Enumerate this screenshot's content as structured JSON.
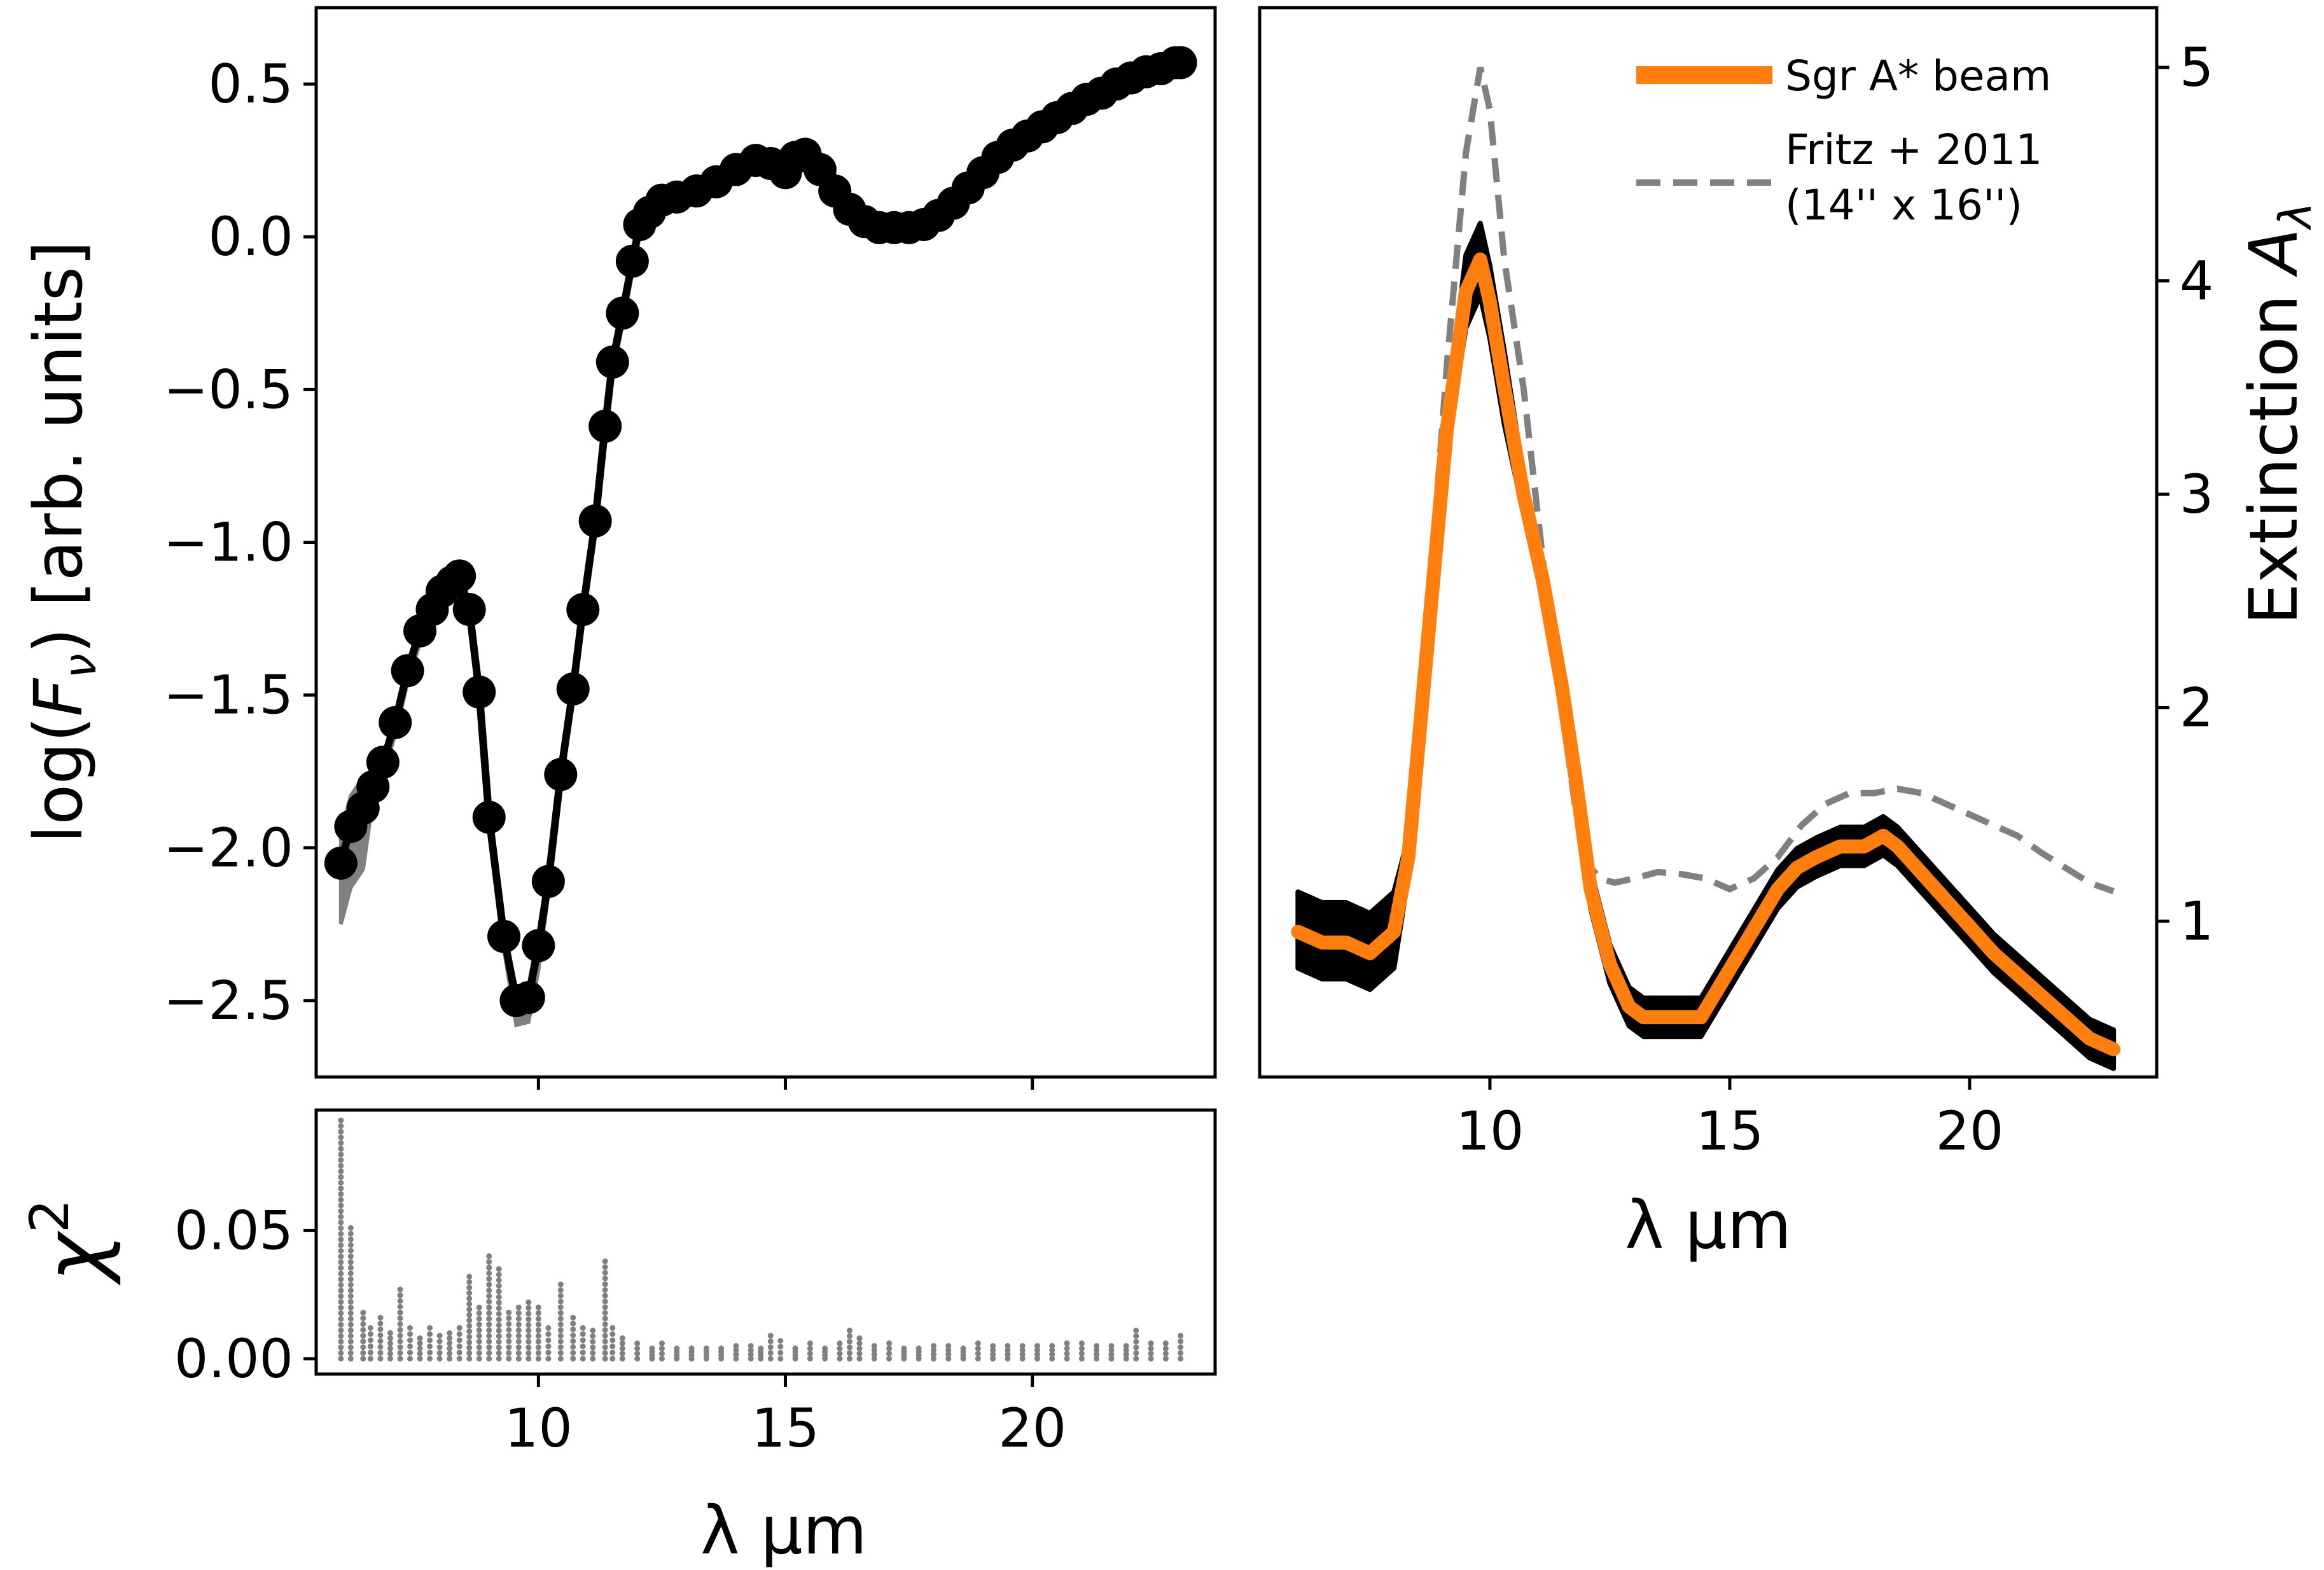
{
  "colors": {
    "accent_orange": "#ff7f0e",
    "gray": "#808080",
    "black": "#000000"
  },
  "chart_data": [
    {
      "id": "flux",
      "type": "line",
      "title": "",
      "xlabel": "λ µm",
      "ylabel": "log(F_ν) [arb. units]",
      "ylabel_parts": {
        "pre": "log(",
        "var": "F",
        "sub": "ν",
        "post": ") [arb. units]"
      },
      "xlim": [
        5.5,
        23.7
      ],
      "ylim": [
        -2.75,
        0.75
      ],
      "yticks": [
        -2.5,
        -2.0,
        -1.5,
        -1.0,
        -0.5,
        0.0,
        0.5
      ],
      "ytick_labels": [
        "−2.5",
        "−2.0",
        "−1.5",
        "−1.0",
        "−0.5",
        "0.0",
        "0.5"
      ],
      "xticks": [
        10,
        15,
        20
      ],
      "series": [
        {
          "name": "data",
          "style": "black markers with line, gray uncertainty band",
          "x": [
            6.0,
            6.2,
            6.45,
            6.65,
            6.85,
            7.1,
            7.35,
            7.6,
            7.85,
            8.05,
            8.25,
            8.4,
            8.6,
            8.8,
            9.0,
            9.3,
            9.55,
            9.8,
            10.0,
            10.2,
            10.45,
            10.7,
            10.9,
            11.15,
            11.35,
            11.5,
            11.7,
            11.9,
            12.05,
            12.25,
            12.5,
            12.8,
            13.2,
            13.6,
            14.0,
            14.4,
            14.7,
            15.0,
            15.2,
            15.4,
            15.7,
            16.0,
            16.3,
            16.6,
            16.9,
            17.2,
            17.5,
            17.8,
            18.1,
            18.4,
            18.7,
            19.0,
            19.3,
            19.6,
            19.9,
            20.2,
            20.5,
            20.8,
            21.1,
            21.4,
            21.7,
            22.0,
            22.3,
            22.6,
            22.9,
            23.0
          ],
          "y": [
            -2.05,
            -1.93,
            -1.87,
            -1.8,
            -1.72,
            -1.59,
            -1.42,
            -1.29,
            -1.22,
            -1.16,
            -1.13,
            -1.11,
            -1.22,
            -1.49,
            -1.9,
            -2.29,
            -2.5,
            -2.49,
            -2.32,
            -2.11,
            -1.76,
            -1.48,
            -1.22,
            -0.93,
            -0.62,
            -0.41,
            -0.25,
            -0.08,
            0.04,
            0.08,
            0.12,
            0.13,
            0.15,
            0.18,
            0.22,
            0.25,
            0.24,
            0.21,
            0.26,
            0.27,
            0.22,
            0.15,
            0.09,
            0.05,
            0.03,
            0.03,
            0.03,
            0.04,
            0.07,
            0.11,
            0.16,
            0.21,
            0.26,
            0.3,
            0.33,
            0.36,
            0.39,
            0.42,
            0.45,
            0.47,
            0.5,
            0.52,
            0.54,
            0.55,
            0.57,
            0.57
          ]
        }
      ]
    },
    {
      "id": "chi2",
      "type": "scatter",
      "title": "",
      "xlabel": "λ µm",
      "ylabel": "χ²",
      "ylabel_parts": {
        "base": "χ",
        "sup": "2"
      },
      "xlim": [
        5.5,
        23.7
      ],
      "ylim": [
        -0.006,
        0.097
      ],
      "yticks": [
        0.0,
        0.05
      ],
      "ytick_labels": [
        "0.00",
        "0.05"
      ],
      "xticks": [
        10,
        15,
        20
      ],
      "xtick_labels": [
        "10",
        "15",
        "20"
      ],
      "series": [
        {
          "name": "chi2 per wavelength (max of stacked gray points)",
          "x": [
            6.0,
            6.2,
            6.45,
            6.6,
            6.8,
            7.0,
            7.2,
            7.4,
            7.6,
            7.8,
            8.0,
            8.2,
            8.4,
            8.6,
            8.8,
            9.0,
            9.2,
            9.4,
            9.6,
            9.8,
            10.0,
            10.2,
            10.45,
            10.7,
            10.9,
            11.1,
            11.35,
            11.5,
            11.7,
            12.0,
            12.3,
            12.5,
            12.8,
            13.1,
            13.4,
            13.7,
            14.0,
            14.3,
            14.5,
            14.7,
            14.9,
            15.2,
            15.5,
            15.8,
            16.1,
            16.3,
            16.5,
            16.8,
            17.1,
            17.4,
            17.7,
            18.0,
            18.3,
            18.6,
            18.9,
            19.2,
            19.5,
            19.8,
            20.1,
            20.4,
            20.7,
            21.0,
            21.3,
            21.6,
            21.9,
            22.1,
            22.4,
            22.7,
            23.0
          ],
          "y": [
            0.093,
            0.051,
            0.018,
            0.012,
            0.016,
            0.01,
            0.027,
            0.012,
            0.008,
            0.012,
            0.009,
            0.01,
            0.012,
            0.032,
            0.02,
            0.04,
            0.035,
            0.018,
            0.02,
            0.022,
            0.02,
            0.012,
            0.029,
            0.016,
            0.012,
            0.011,
            0.038,
            0.012,
            0.008,
            0.006,
            0.004,
            0.006,
            0.004,
            0.004,
            0.004,
            0.004,
            0.005,
            0.005,
            0.004,
            0.009,
            0.007,
            0.004,
            0.006,
            0.004,
            0.006,
            0.011,
            0.008,
            0.005,
            0.006,
            0.004,
            0.004,
            0.005,
            0.005,
            0.004,
            0.006,
            0.005,
            0.005,
            0.005,
            0.005,
            0.005,
            0.006,
            0.006,
            0.005,
            0.005,
            0.005,
            0.011,
            0.006,
            0.006,
            0.009
          ]
        }
      ]
    },
    {
      "id": "extinction",
      "type": "line",
      "title": "",
      "xlabel": "λ µm",
      "ylabel": "Extinction A_λ",
      "ylabel_parts": {
        "pre": "Extinction ",
        "var": "A",
        "sub": "λ"
      },
      "yaxis_side": "right",
      "xlim": [
        5.2,
        23.9
      ],
      "ylim": [
        0.27,
        5.28
      ],
      "yticks": [
        1,
        2,
        3,
        4,
        5
      ],
      "ytick_labels": [
        "1",
        "2",
        "3",
        "4",
        "5"
      ],
      "xticks": [
        10,
        15,
        20
      ],
      "xtick_labels": [
        "10",
        "15",
        "20"
      ],
      "legend": {
        "location": "top-right",
        "entries": [
          {
            "label": "Sgr A* beam",
            "style": "solid",
            "color": "#ff7f0e"
          },
          {
            "label_lines": [
              "Fritz + 2011",
              "(14'' x 16'')"
            ],
            "style": "dashed",
            "color": "#808080"
          }
        ]
      },
      "series": [
        {
          "name": "Sgr A* beam",
          "x": [
            6.0,
            6.5,
            7.0,
            7.5,
            8.0,
            8.3,
            8.7,
            9.1,
            9.5,
            9.8,
            10.0,
            10.3,
            10.7,
            11.1,
            11.5,
            11.8,
            12.1,
            12.5,
            12.9,
            13.2,
            13.5,
            14.0,
            14.4,
            14.8,
            15.2,
            15.6,
            16.0,
            16.4,
            16.8,
            17.3,
            17.8,
            18.2,
            18.5,
            18.9,
            19.3,
            19.7,
            20.1,
            20.5,
            21.0,
            21.5,
            22.0,
            22.5,
            23.0
          ],
          "y": [
            0.95,
            0.9,
            0.9,
            0.85,
            0.95,
            1.3,
            2.3,
            3.3,
            3.95,
            4.1,
            3.9,
            3.5,
            3.0,
            2.6,
            2.1,
            1.65,
            1.15,
            0.8,
            0.6,
            0.55,
            0.55,
            0.55,
            0.55,
            0.7,
            0.85,
            1.0,
            1.15,
            1.25,
            1.3,
            1.35,
            1.35,
            1.4,
            1.35,
            1.25,
            1.15,
            1.05,
            0.95,
            0.85,
            0.75,
            0.65,
            0.55,
            0.45,
            0.4
          ]
        },
        {
          "name": "Fritz + 2011 (14'' x 16'')",
          "x": [
            6.0,
            6.5,
            7.0,
            7.5,
            8.0,
            8.3,
            8.7,
            9.1,
            9.5,
            9.8,
            10.0,
            10.3,
            10.7,
            11.1,
            11.5,
            11.8,
            12.1,
            12.3,
            12.6,
            13.0,
            13.5,
            14.0,
            14.5,
            15.0,
            15.5,
            16.0,
            16.5,
            17.0,
            17.5,
            18.0,
            18.5,
            19.0,
            19.5,
            20.0,
            20.5,
            21.0,
            21.5,
            22.0,
            22.5,
            23.0
          ],
          "y": [
            0.95,
            0.9,
            0.9,
            0.85,
            0.95,
            1.3,
            2.4,
            3.6,
            4.6,
            5.0,
            4.8,
            4.1,
            3.5,
            2.7,
            2.0,
            1.5,
            1.25,
            1.2,
            1.18,
            1.2,
            1.23,
            1.22,
            1.2,
            1.15,
            1.2,
            1.3,
            1.45,
            1.55,
            1.6,
            1.6,
            1.62,
            1.6,
            1.55,
            1.5,
            1.45,
            1.4,
            1.32,
            1.25,
            1.18,
            1.14
          ]
        }
      ]
    }
  ]
}
